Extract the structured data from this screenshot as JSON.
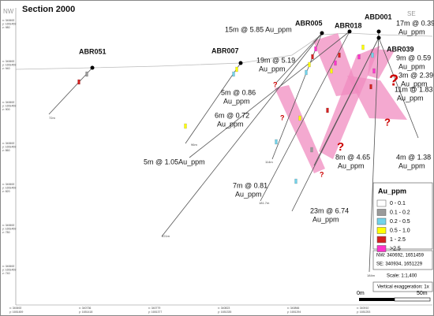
{
  "header": {
    "title": "Section 2000",
    "nw": "NW",
    "se": "SE"
  },
  "holes": [
    {
      "label": "ABR051"
    },
    {
      "label": "ABR007"
    },
    {
      "label": "ABR005"
    },
    {
      "label": "ABR018"
    },
    {
      "label": "ABD001"
    },
    {
      "label": "ABR039"
    }
  ],
  "intercepts": [
    {
      "lines": [
        "15m @ 5.85 Au_ppm"
      ]
    },
    {
      "lines": [
        "17m @ 0.39",
        "Au_ppm"
      ]
    },
    {
      "lines": [
        "19m @ 5.19",
        "Au_ppm"
      ]
    },
    {
      "lines": [
        "9m @ 0.59",
        "Au_ppm"
      ]
    },
    {
      "lines": [
        "3m @ 2.39",
        "Au_ppm"
      ]
    },
    {
      "lines": [
        "11m @ 1.83",
        "Au_ppm"
      ]
    },
    {
      "lines": [
        "5m @ 0.86",
        "Au_ppm"
      ]
    },
    {
      "lines": [
        "6m @ 0.72",
        "Au_ppm"
      ]
    },
    {
      "lines": [
        "5m @ 1.05Au_ppm"
      ]
    },
    {
      "lines": [
        "8m @ 4.65",
        "Au_ppm"
      ]
    },
    {
      "lines": [
        "4m @ 1.38",
        "Au_ppm"
      ]
    },
    {
      "lines": [
        "7m @ 0.81",
        "Au_ppm"
      ]
    },
    {
      "lines": [
        "23m @ 6.74",
        "Au_ppm"
      ]
    }
  ],
  "depths": [
    "72m",
    "96m",
    "114m",
    "221m",
    "181.7m",
    "184m"
  ],
  "queries": [
    "?",
    "?",
    "?",
    "?",
    "?",
    "?"
  ],
  "elevations": [
    [
      "x: 340692",
      "y: 1651459",
      "z: 980"
    ],
    [
      "x: 340692",
      "y: 1651459",
      "z: 940"
    ],
    [
      "x: 340692",
      "y: 1651459",
      "z: 900"
    ],
    [
      "x: 340692",
      "y: 1651459",
      "z: 860"
    ],
    [
      "x: 340692",
      "y: 1651459",
      "z: 820"
    ],
    [
      "x: 340692",
      "y: 1651459",
      "z: 780"
    ],
    [
      "x: 340692",
      "y: 1651459",
      "z: 740"
    ]
  ],
  "eastings": [
    [
      "x: 340692",
      "y: 1651459"
    ],
    [
      "x: 340736",
      "y: 1651418"
    ],
    [
      "x: 340779",
      "y: 1651377"
    ],
    [
      "x: 340823",
      "y: 1651335"
    ],
    [
      "x: 340866",
      "y: 1651294"
    ],
    [
      "x: 340910",
      "y: 1651253"
    ]
  ],
  "legend": {
    "title": "Au_ppm",
    "entries": [
      {
        "label": "0 - 0.1",
        "color": "#ffffff"
      },
      {
        "label": "0.1 - 0.2",
        "color": "#9a9a9a"
      },
      {
        "label": "0.2 - 0.5",
        "color": "#72d3ea"
      },
      {
        "label": "0.5 - 1.0",
        "color": "#ffff00"
      },
      {
        "label": "1 - 2.5",
        "color": "#d62020"
      },
      {
        "label": ">2.5",
        "color": "#ff33cc"
      }
    ]
  },
  "info": {
    "nw": "NW: 340692, 1651459",
    "se": "SE: 340934, 1651229"
  },
  "scale": {
    "text": "Scale: 1:1,400",
    "exaggeration": "Vertical exaggeration: 1x",
    "start": "0m",
    "end": "50m"
  }
}
